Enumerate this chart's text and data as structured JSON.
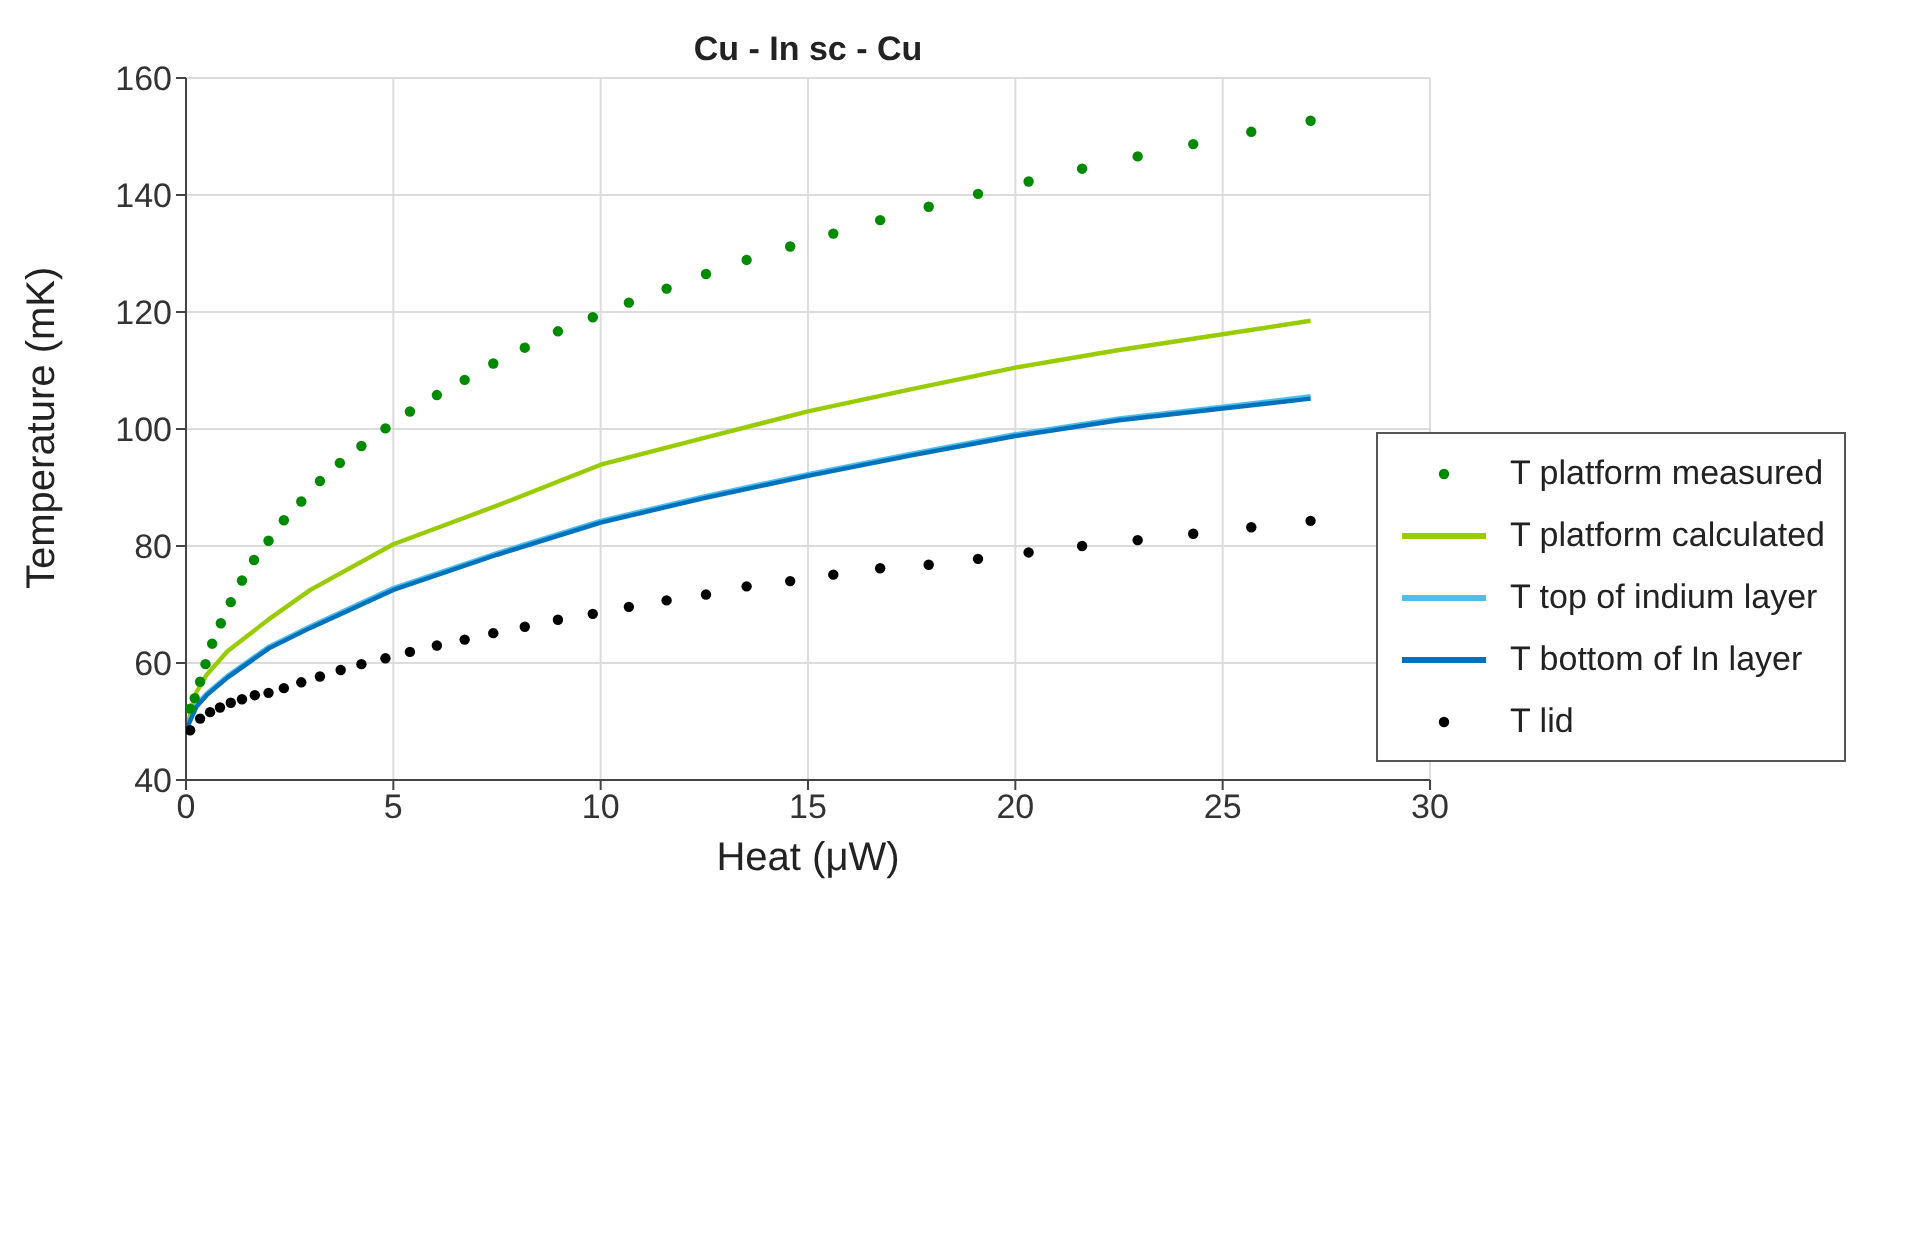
{
  "chart_data": {
    "type": "line",
    "title": "Cu - In sc - Cu",
    "xlabel": "Heat (μW)",
    "ylabel": "Temperature (mK)",
    "xlim": [
      0,
      30
    ],
    "xticks": [
      0,
      5,
      10,
      15,
      20,
      25,
      30
    ],
    "ylim": [
      40,
      160
    ],
    "yticks": [
      40,
      60,
      80,
      100,
      120,
      140,
      160
    ],
    "grid": true,
    "legend": "right",
    "series": [
      {
        "name": "T platform measured",
        "type": "scatter",
        "marker": "circle",
        "color": "#008a00",
        "x": [
          0.1,
          0.21,
          0.34,
          0.47,
          0.63,
          0.84,
          1.08,
          1.35,
          1.64,
          1.99,
          2.36,
          2.78,
          3.23,
          3.71,
          4.23,
          4.81,
          5.4,
          6.05,
          6.72,
          7.41,
          8.17,
          8.97,
          9.81,
          10.68,
          11.59,
          12.54,
          13.52,
          14.57,
          15.61,
          16.74,
          17.91,
          19.1,
          20.32,
          21.61,
          22.95,
          24.29,
          25.69,
          27.12
        ],
        "values": [
          52.2,
          54,
          56.8,
          59.8,
          63.3,
          66.8,
          70.4,
          74.1,
          77.6,
          80.9,
          84.4,
          87.6,
          91.1,
          94.2,
          97.1,
          100.1,
          103,
          105.8,
          108.4,
          111.2,
          113.9,
          116.7,
          119.1,
          121.6,
          124,
          126.5,
          128.9,
          131.2,
          133.4,
          135.7,
          138,
          140.2,
          142.3,
          144.5,
          146.6,
          148.7,
          150.8,
          152.7
        ]
      },
      {
        "name": "T platform calculated",
        "marker": "none",
        "color": "#99cc00",
        "x": [
          0,
          0.25,
          0.5,
          1,
          2,
          3,
          5,
          7.5,
          10,
          12.5,
          15,
          17.5,
          20,
          22.5,
          25,
          27.12
        ],
        "values": [
          48.5,
          55,
          58,
          62,
          67.5,
          72.5,
          80.3,
          86.9,
          93.9,
          98.5,
          103,
          106.8,
          110.5,
          113.5,
          116.2,
          118.5
        ]
      },
      {
        "name": "T top of indium layer",
        "marker": "none",
        "color": "#4dbeee",
        "x": [
          0,
          0.25,
          0.5,
          1,
          2,
          3,
          5,
          7.5,
          10,
          12.5,
          15,
          17.5,
          20,
          22.5,
          25,
          27.12
        ],
        "values": [
          48.8,
          52.8,
          54.8,
          57.8,
          62.8,
          66.3,
          72.8,
          78.8,
          84.3,
          88.5,
          92.3,
          95.8,
          99.1,
          101.8,
          103.8,
          105.6
        ]
      },
      {
        "name": "T bottom of In layer",
        "marker": "none",
        "color": "#0072bd",
        "x": [
          0,
          0.25,
          0.5,
          1,
          2,
          3,
          5,
          7.5,
          10,
          12.5,
          15,
          17.5,
          20,
          22.5,
          25,
          27.12
        ],
        "values": [
          48.5,
          52.5,
          54.5,
          57.5,
          62.5,
          66,
          72.5,
          78.5,
          84,
          88.2,
          92,
          95.5,
          98.8,
          101.5,
          103.5,
          105.2
        ]
      },
      {
        "name": "T lid",
        "type": "scatter",
        "marker": "circle",
        "color": "#000000",
        "x": [
          0.1,
          0.34,
          0.58,
          0.82,
          1.08,
          1.35,
          1.66,
          1.99,
          2.36,
          2.78,
          3.23,
          3.73,
          4.23,
          4.81,
          5.4,
          6.05,
          6.72,
          7.41,
          8.17,
          8.97,
          9.81,
          10.68,
          11.59,
          12.54,
          13.52,
          14.57,
          15.61,
          16.74,
          17.91,
          19.1,
          20.32,
          21.61,
          22.95,
          24.29,
          25.69,
          27.12
        ],
        "values": [
          48.5,
          50.5,
          51.6,
          52.4,
          53.2,
          53.8,
          54.5,
          54.9,
          55.7,
          56.7,
          57.7,
          58.8,
          59.8,
          60.8,
          61.9,
          63,
          64,
          65.1,
          66.2,
          67.4,
          68.4,
          69.6,
          70.7,
          71.7,
          73.1,
          74,
          75.1,
          76.2,
          76.8,
          77.8,
          78.9,
          80,
          81,
          82.1,
          83.2,
          84.3
        ]
      }
    ]
  }
}
